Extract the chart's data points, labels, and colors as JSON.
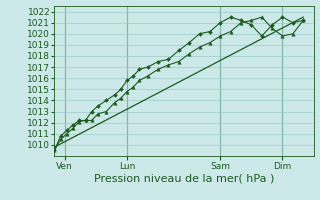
{
  "title": "Pression niveau de la mer( hPa )",
  "bg_color": "#cce8e8",
  "plot_bg": "#cce8e8",
  "grid_color": "#99cccc",
  "line_color": "#1a5c1a",
  "ylim": [
    1009.0,
    1022.5
  ],
  "yticks": [
    1010,
    1011,
    1012,
    1013,
    1014,
    1015,
    1016,
    1017,
    1018,
    1019,
    1020,
    1021,
    1022
  ],
  "day_labels": [
    "Ven",
    "Lun",
    "Sam",
    "Dim"
  ],
  "day_positions": [
    0.5,
    3.5,
    8.0,
    11.0
  ],
  "vline_positions": [
    0.5,
    3.5,
    8.0,
    11.0
  ],
  "series1_x": [
    0.0,
    0.3,
    0.6,
    0.9,
    1.2,
    1.5,
    1.8,
    2.1,
    2.5,
    2.9,
    3.2,
    3.5,
    3.8,
    4.1,
    4.5,
    5.0,
    5.5,
    6.0,
    6.5,
    7.0,
    7.5,
    8.0,
    8.5,
    9.0,
    9.5,
    10.0,
    10.5,
    11.0,
    11.5,
    12.0
  ],
  "series1_y": [
    1009.5,
    1010.5,
    1011.0,
    1011.5,
    1012.1,
    1012.2,
    1012.2,
    1012.8,
    1013.0,
    1013.8,
    1014.2,
    1014.8,
    1015.2,
    1015.8,
    1016.2,
    1016.8,
    1017.2,
    1017.5,
    1018.2,
    1018.8,
    1019.2,
    1019.8,
    1020.2,
    1021.0,
    1021.2,
    1021.5,
    1020.5,
    1019.8,
    1020.0,
    1021.2
  ],
  "series2_x": [
    0.0,
    0.3,
    0.6,
    0.9,
    1.2,
    1.5,
    1.8,
    2.1,
    2.5,
    2.9,
    3.2,
    3.5,
    3.8,
    4.1,
    4.5,
    5.0,
    5.5,
    6.0,
    6.5,
    7.0,
    7.5,
    8.0,
    8.5,
    9.0,
    9.5,
    10.0,
    10.5,
    11.0,
    11.5,
    12.0
  ],
  "series2_y": [
    1009.5,
    1010.8,
    1011.3,
    1011.8,
    1012.2,
    1012.2,
    1013.0,
    1013.5,
    1014.0,
    1014.5,
    1015.0,
    1015.8,
    1016.2,
    1016.8,
    1017.0,
    1017.5,
    1017.7,
    1018.5,
    1019.2,
    1020.0,
    1020.2,
    1021.0,
    1021.5,
    1021.2,
    1020.8,
    1019.8,
    1020.8,
    1021.5,
    1021.0,
    1021.2
  ],
  "trend_x": [
    0.0,
    12.0
  ],
  "trend_y": [
    1009.8,
    1021.5
  ],
  "xlim": [
    0.0,
    12.5
  ],
  "xlabel_fontsize": 8,
  "tick_fontsize": 6.5
}
